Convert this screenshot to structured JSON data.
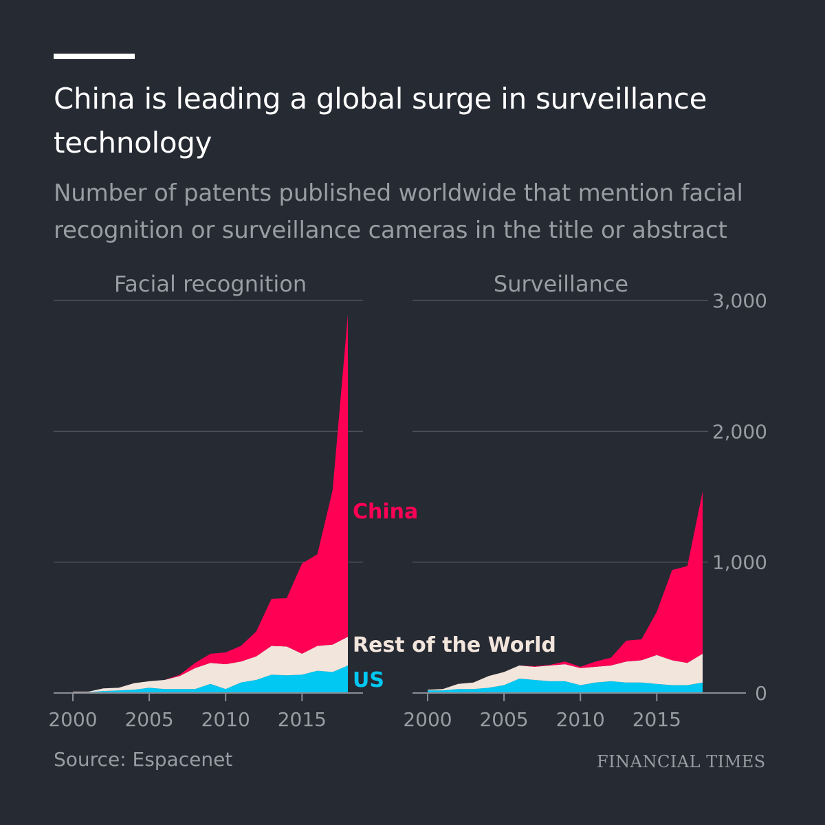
{
  "title": "China is leading a global surge in surveillance technology",
  "subtitle": "Number of patents published worldwide that mention facial recognition or surveillance cameras in the title or abstract",
  "source": "Source: Espacenet",
  "brand": "FINANCIAL TIMES",
  "colors": {
    "background": "#262a33",
    "china": "#ff0055",
    "rest": "#f2e5dc",
    "us": "#00c8f2",
    "grid": "#4e525a",
    "text_muted": "#9a9ca3"
  },
  "chart_data": [
    {
      "type": "area",
      "stacked": true,
      "title": "Facial recognition",
      "x": [
        2000,
        2001,
        2002,
        2003,
        2004,
        2005,
        2006,
        2007,
        2008,
        2009,
        2010,
        2011,
        2012,
        2013,
        2014,
        2015,
        2016,
        2017,
        2018
      ],
      "series": [
        {
          "name": "US",
          "values": [
            5,
            5,
            15,
            20,
            25,
            40,
            30,
            30,
            30,
            70,
            30,
            80,
            100,
            140,
            135,
            140,
            170,
            160,
            210
          ]
        },
        {
          "name": "Rest of the World",
          "values": [
            5,
            5,
            20,
            20,
            50,
            50,
            70,
            100,
            160,
            160,
            190,
            160,
            180,
            220,
            220,
            160,
            190,
            210,
            220
          ]
        },
        {
          "name": "China",
          "values": [
            0,
            0,
            0,
            0,
            0,
            0,
            0,
            10,
            40,
            70,
            90,
            120,
            190,
            360,
            370,
            690,
            700,
            1180,
            2460
          ]
        }
      ],
      "xticks": [
        "2000",
        "2005",
        "2010",
        "2015"
      ],
      "ylim": [
        0,
        3000
      ]
    },
    {
      "type": "area",
      "stacked": true,
      "title": "Surveillance",
      "x": [
        2000,
        2001,
        2002,
        2003,
        2004,
        2005,
        2006,
        2007,
        2008,
        2009,
        2010,
        2011,
        2012,
        2013,
        2014,
        2015,
        2016,
        2017,
        2018
      ],
      "series": [
        {
          "name": "US",
          "values": [
            20,
            20,
            30,
            30,
            40,
            60,
            110,
            100,
            90,
            90,
            60,
            80,
            90,
            80,
            80,
            70,
            60,
            60,
            80
          ]
        },
        {
          "name": "Rest of the World",
          "values": [
            5,
            10,
            40,
            50,
            90,
            100,
            100,
            100,
            120,
            130,
            130,
            120,
            120,
            160,
            170,
            220,
            190,
            170,
            220
          ]
        },
        {
          "name": "China",
          "values": [
            0,
            0,
            0,
            0,
            0,
            0,
            0,
            5,
            5,
            20,
            10,
            40,
            60,
            160,
            160,
            330,
            690,
            740,
            1240
          ]
        }
      ],
      "xticks": [
        "2000",
        "2005",
        "2010",
        "2015"
      ],
      "yticks": [
        "0",
        "1,000",
        "2,000",
        "3,000"
      ],
      "ylim": [
        0,
        3000
      ]
    }
  ]
}
